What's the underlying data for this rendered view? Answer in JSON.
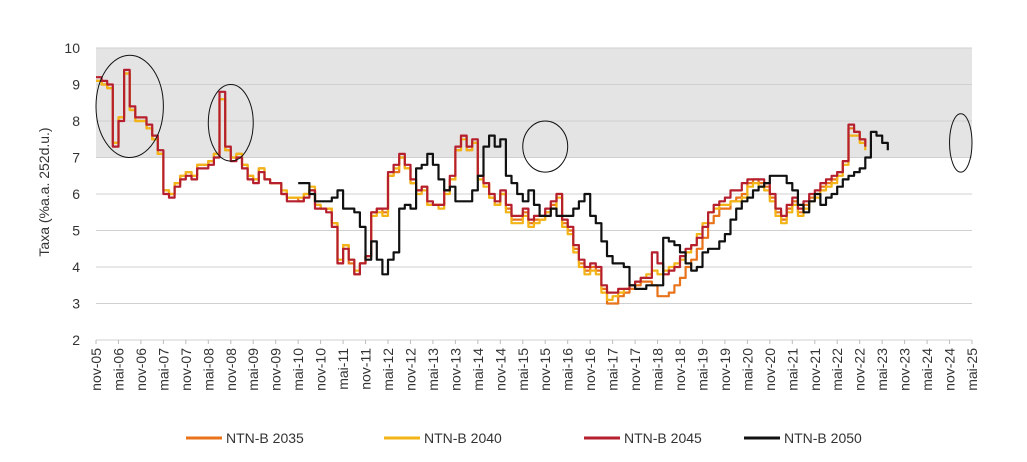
{
  "chart_data": {
    "type": "line",
    "title": "",
    "xlabel": "",
    "ylabel": "Taxa (%a.a. 252d.u.)",
    "ylim": [
      2,
      10
    ],
    "yticks": [
      "2",
      "3",
      "4",
      "5",
      "6",
      "7",
      "8",
      "9",
      "10"
    ],
    "shaded_band": [
      7,
      10
    ],
    "grid": true,
    "legend_position": "bottom",
    "x_ticks": [
      "nov-05",
      "mai-06",
      "nov-06",
      "mai-07",
      "nov-07",
      "mai-08",
      "nov-08",
      "mai-09",
      "nov-09",
      "mai-10",
      "nov-10",
      "mai-11",
      "nov-11",
      "mai-12",
      "nov-12",
      "mai-13",
      "nov-13",
      "mai-14",
      "nov-14",
      "mai-15",
      "nov-15",
      "mai-16",
      "nov-16",
      "mai-17",
      "nov-17",
      "mai-18",
      "nov-18",
      "mai-19",
      "nov-19",
      "mai-20",
      "nov-20",
      "mai-21",
      "nov-21",
      "mai-22",
      "nov-22",
      "mai-23",
      "nov-23",
      "mai-24",
      "nov-24",
      "mai-25"
    ],
    "highlight_circles": [
      {
        "x_start": "nov-05",
        "x_end": "mai-07",
        "y_low": 7.0,
        "y_high": 9.8
      },
      {
        "x_start": "mai-08",
        "x_end": "mai-09",
        "y_low": 6.9,
        "y_high": 9.0
      },
      {
        "x_start": "mai-15",
        "x_end": "mai-16",
        "y_low": 6.6,
        "y_high": 8.0
      },
      {
        "x_start": "nov-24",
        "x_end": "mai-25",
        "y_low": 6.6,
        "y_high": 8.2
      }
    ],
    "series": [
      {
        "name": "NTN-B 2035",
        "color": "#E8731A",
        "start": "nov-05",
        "values": [
          9.1,
          9.0,
          8.9,
          7.4,
          8.1,
          9.3,
          8.3,
          8.0,
          8.0,
          7.8,
          7.5,
          7.1,
          6.1,
          6.0,
          6.3,
          6.5,
          6.6,
          6.5,
          6.8,
          6.8,
          6.9,
          7.1,
          8.6,
          7.2,
          7.0,
          7.1,
          6.8,
          6.5,
          6.4,
          6.7,
          6.4,
          6.3,
          6.3,
          6.0,
          5.9,
          5.9,
          5.8,
          6.0,
          6.1,
          5.7,
          5.6,
          5.6,
          5.2,
          4.1,
          4.6,
          4.1,
          3.8,
          4.1,
          4.3,
          5.5,
          5.6,
          5.5,
          6.5,
          6.6,
          7.0,
          6.7,
          6.3,
          6.1,
          6.2,
          5.7,
          5.7,
          5.7,
          6.1,
          6.4,
          7.2,
          7.6,
          7.2,
          7.4,
          6.5,
          6.3,
          5.9,
          5.7,
          6.0,
          5.6,
          5.3,
          5.3,
          5.5,
          5.2,
          5.3,
          5.3,
          5.5,
          5.7,
          6.0,
          5.2,
          5.0,
          4.5,
          4.1,
          3.9,
          4.0,
          3.9,
          3.4,
          3.0,
          3.0,
          3.2,
          3.3,
          3.4,
          3.5,
          3.6,
          3.6,
          3.5,
          3.2,
          3.2,
          3.3,
          3.5,
          3.7,
          4.0,
          4.2,
          4.5,
          4.8,
          5.2,
          5.4,
          5.6,
          5.6,
          5.8,
          5.9,
          6.0,
          6.3,
          6.4,
          6.3,
          6.2,
          5.9,
          5.5,
          5.3,
          5.6,
          5.8,
          5.5,
          5.7,
          5.9,
          6.0,
          6.2,
          6.3,
          6.4,
          6.6,
          6.9,
          7.8,
          7.7,
          7.5,
          7.3
        ]
      },
      {
        "name": "NTN-B 2040",
        "color": "#F2B416",
        "start": "nov-05",
        "values": [
          9.1,
          9.0,
          8.9,
          7.4,
          8.1,
          9.3,
          8.3,
          8.0,
          8.0,
          7.8,
          7.5,
          7.1,
          6.1,
          6.0,
          6.3,
          6.5,
          6.6,
          6.5,
          6.8,
          6.8,
          6.9,
          7.1,
          8.6,
          7.2,
          7.0,
          7.1,
          6.8,
          6.5,
          6.4,
          6.7,
          6.4,
          6.3,
          6.3,
          6.1,
          5.9,
          5.9,
          5.9,
          6.0,
          6.2,
          5.7,
          5.6,
          5.6,
          5.2,
          4.2,
          4.6,
          4.2,
          3.9,
          4.1,
          4.3,
          5.4,
          5.5,
          5.4,
          6.5,
          6.7,
          7.0,
          6.7,
          6.3,
          6.0,
          6.1,
          5.7,
          5.7,
          5.6,
          6.0,
          6.4,
          7.2,
          7.5,
          7.2,
          7.4,
          6.4,
          6.2,
          5.9,
          5.7,
          6.0,
          5.5,
          5.2,
          5.2,
          5.4,
          5.1,
          5.2,
          5.3,
          5.5,
          5.6,
          5.9,
          5.1,
          4.9,
          4.4,
          4.0,
          3.8,
          3.9,
          3.8,
          3.3,
          3.1,
          3.2,
          3.3,
          3.4,
          3.5,
          3.6,
          3.7,
          3.8,
          3.9,
          3.8,
          3.9,
          4.0,
          4.1,
          4.2,
          4.4,
          4.6,
          4.9,
          5.2,
          5.5,
          5.6,
          5.7,
          5.7,
          5.8,
          5.8,
          5.9,
          6.2,
          6.3,
          6.2,
          6.1,
          5.8,
          5.4,
          5.2,
          5.5,
          5.7,
          5.4,
          5.6,
          5.8,
          5.9,
          6.1,
          6.2,
          6.3,
          6.5,
          6.8,
          7.6,
          7.6,
          7.4,
          7.2
        ]
      },
      {
        "name": "NTN-B 2045",
        "color": "#B51F2E",
        "start": "nov-05",
        "values": [
          9.2,
          9.1,
          9.0,
          7.3,
          8.0,
          9.4,
          8.4,
          8.1,
          8.1,
          7.9,
          7.6,
          7.2,
          6.0,
          5.9,
          6.2,
          6.4,
          6.5,
          6.4,
          6.7,
          6.7,
          6.8,
          7.0,
          8.8,
          7.3,
          6.9,
          7.0,
          6.7,
          6.4,
          6.3,
          6.6,
          6.4,
          6.3,
          6.3,
          6.0,
          5.8,
          5.8,
          5.8,
          5.9,
          6.1,
          5.6,
          5.6,
          5.5,
          5.1,
          4.1,
          4.5,
          4.2,
          3.8,
          4.1,
          4.3,
          5.5,
          5.6,
          5.6,
          6.6,
          6.8,
          7.1,
          6.8,
          6.4,
          6.1,
          6.2,
          5.8,
          5.7,
          5.7,
          6.1,
          6.5,
          7.3,
          7.6,
          7.3,
          7.5,
          6.5,
          6.3,
          6.0,
          5.8,
          6.1,
          5.7,
          5.4,
          5.4,
          5.6,
          5.3,
          5.4,
          5.4,
          5.6,
          5.8,
          6.0,
          5.3,
          5.1,
          4.6,
          4.2,
          4.0,
          4.1,
          4.0,
          3.5,
          3.3,
          3.3,
          3.4,
          3.4,
          3.5,
          3.6,
          3.7,
          3.7,
          4.4,
          4.1,
          3.8,
          3.9,
          4.0,
          4.3,
          4.5,
          4.6,
          4.8,
          5.1,
          5.5,
          5.7,
          5.8,
          5.9,
          6.1,
          6.1,
          6.3,
          6.4,
          6.4,
          6.4,
          6.3,
          6.0,
          5.6,
          5.4,
          5.7,
          5.9,
          5.6,
          5.8,
          6.0,
          6.1,
          6.3,
          6.4,
          6.5,
          6.6,
          6.9,
          7.9,
          7.7,
          7.5,
          7.3
        ]
      },
      {
        "name": "NTN-B 2050",
        "color": "#111111",
        "start": "mai-10",
        "values": [
          6.3,
          6.3,
          6.0,
          5.8,
          5.8,
          5.8,
          5.9,
          6.1,
          5.6,
          5.6,
          5.5,
          5.1,
          4.2,
          4.7,
          4.2,
          3.8,
          4.2,
          4.4,
          5.6,
          5.7,
          5.6,
          6.7,
          6.8,
          7.1,
          6.8,
          6.4,
          6.1,
          6.2,
          5.8,
          5.8,
          5.8,
          6.1,
          6.5,
          7.3,
          7.6,
          7.3,
          7.5,
          6.5,
          6.3,
          6.0,
          5.8,
          6.1,
          5.7,
          5.4,
          5.4,
          5.6,
          5.4,
          5.4,
          5.4,
          5.6,
          5.8,
          6.0,
          5.4,
          5.2,
          4.7,
          4.3,
          4.1,
          4.1,
          4.0,
          3.5,
          3.4,
          3.4,
          3.5,
          3.5,
          3.5,
          4.8,
          4.7,
          4.6,
          4.4,
          4.1,
          3.9,
          4.0,
          4.4,
          4.5,
          4.5,
          4.7,
          4.9,
          5.3,
          5.6,
          5.8,
          5.9,
          6.1,
          6.2,
          6.3,
          6.5,
          6.5,
          6.5,
          6.3,
          6.1,
          5.7,
          5.5,
          5.8,
          6.0,
          5.7,
          5.9,
          6.0,
          6.2,
          6.4,
          6.5,
          6.6,
          6.7,
          7.0,
          7.7,
          7.6,
          7.4,
          7.2
        ]
      }
    ]
  }
}
